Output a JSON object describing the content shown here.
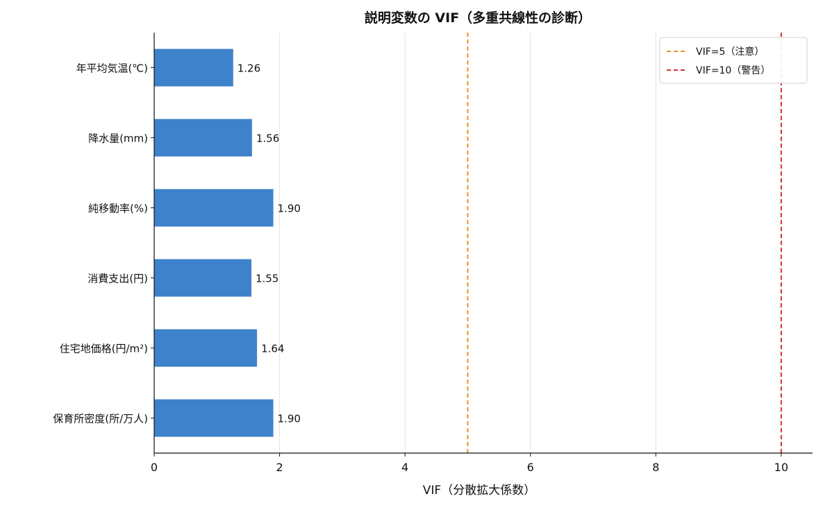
{
  "chart_data": {
    "type": "bar",
    "orientation": "horizontal",
    "title": "説明変数の VIF（多重共線性の診断）",
    "xlabel": "VIF（分散拡大係数）",
    "ylabel": "",
    "xlim": [
      0,
      10.5
    ],
    "xticks": [
      0,
      2,
      4,
      6,
      8,
      10
    ],
    "grid": "vertical",
    "categories": [
      "年平均気温(℃)",
      "降水量(mm)",
      "純移動率(%)",
      "消費支出(円)",
      "住宅地価格(円/m²)",
      "保育所密度(所/万人)"
    ],
    "values": [
      1.26,
      1.56,
      1.9,
      1.55,
      1.64,
      1.9
    ],
    "value_labels": [
      "1.26",
      "1.56",
      "1.90",
      "1.55",
      "1.64",
      "1.90"
    ],
    "bar_color": "#3d82cb",
    "reference_lines": [
      {
        "x": 5,
        "label": "VIF=5（注意）",
        "color": "#f28c28",
        "style": "dashed"
      },
      {
        "x": 10,
        "label": "VIF=10（警告）",
        "color": "#d62f2f",
        "style": "dashed"
      }
    ],
    "legend_position": "top-right"
  }
}
